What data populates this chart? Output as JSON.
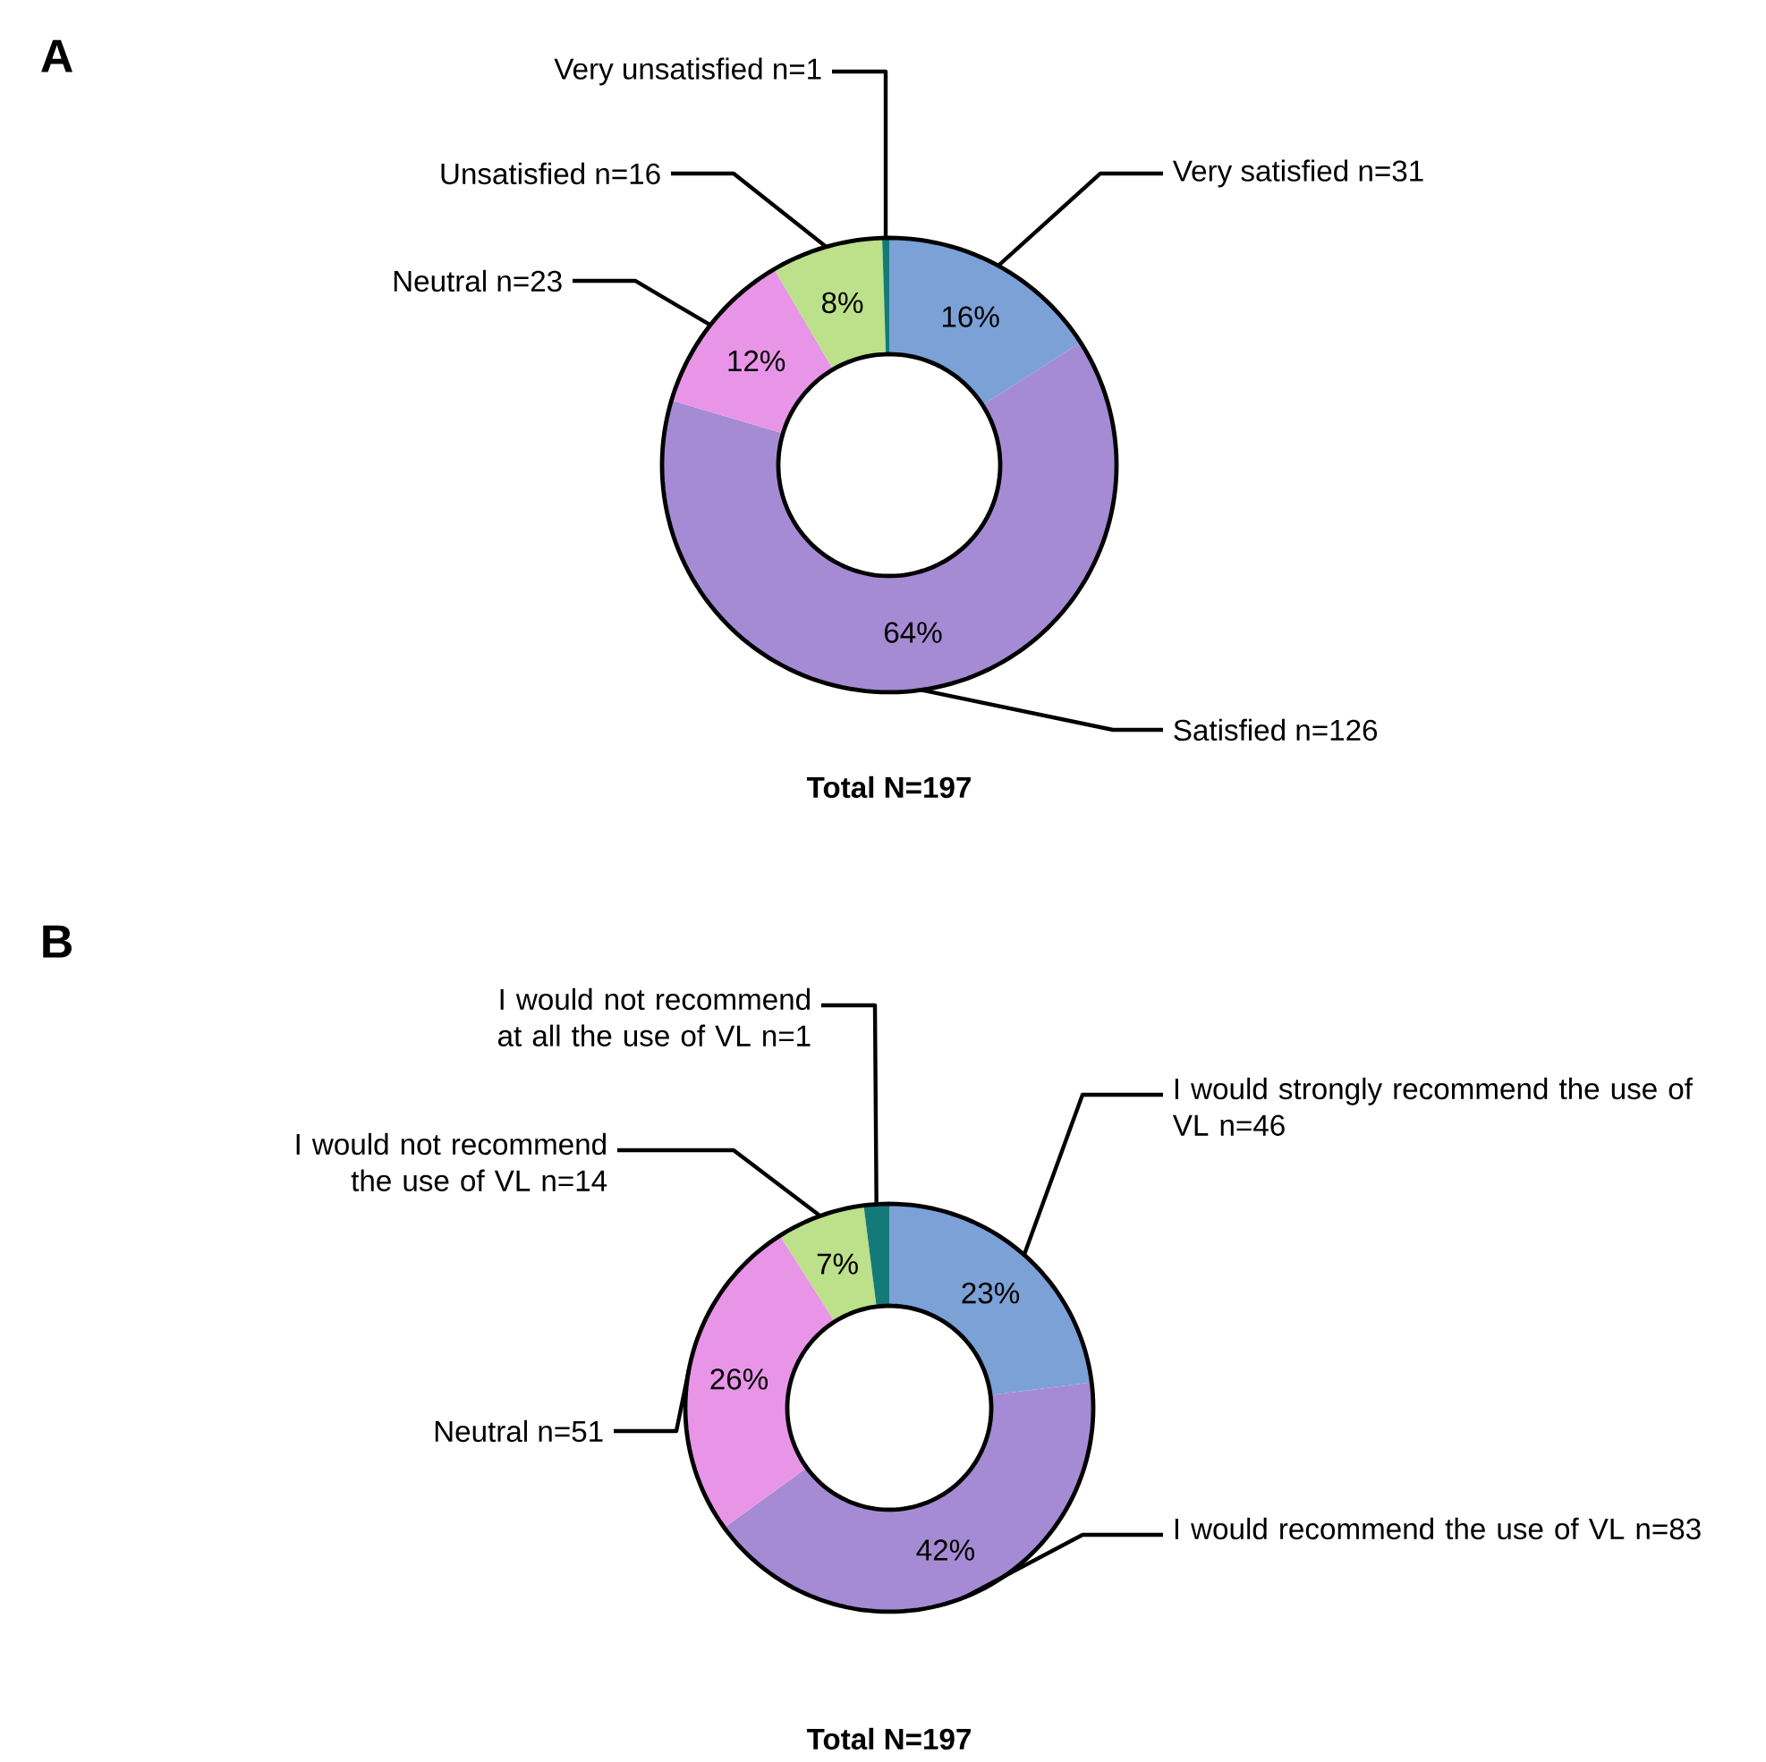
{
  "chart_data": [
    {
      "type": "donut",
      "title": "A",
      "categories": [
        "Very satisfied n=31",
        "Satisfied n=126",
        "Neutral n=23",
        "Unsatisfied n=16",
        "Very unsatisfied n=1"
      ],
      "values": [
        16,
        64,
        12,
        8,
        0.5
      ],
      "colors": [
        "#7ba1d6",
        "#a58bd4",
        "#e895e8",
        "#bde08a",
        "#147a78"
      ],
      "value_labels": [
        "16%",
        "64%",
        "12%",
        "8%",
        null
      ],
      "annotations": [
        "Total N=197"
      ]
    },
    {
      "type": "donut",
      "title": "B",
      "categories": [
        "I would strongly recommend the use of VL n=46",
        "I would recommend the use of VL n=83",
        "Neutral n=51",
        "I would not recommend the use of VL n=14",
        "I would not recommend at all the use of VL n=1"
      ],
      "values": [
        23,
        42,
        26,
        7,
        2
      ],
      "colors": [
        "#7ba1d6",
        "#a58bd4",
        "#e895e8",
        "#bde08a",
        "#147a78"
      ],
      "value_labels": [
        "23%",
        "42%",
        "26%",
        "7%",
        null
      ],
      "annotations": [
        "Total N=197"
      ]
    }
  ]
}
